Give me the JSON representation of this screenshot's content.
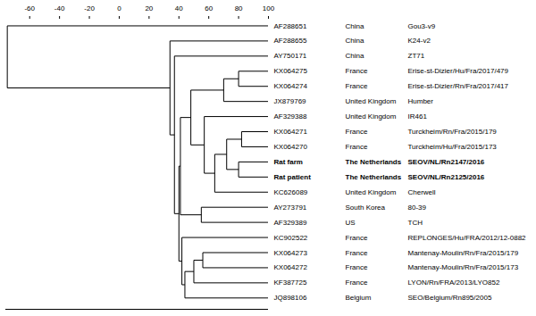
{
  "chart_data": {
    "type": "dendrogram",
    "xlim": [
      -76,
      100
    ],
    "xticks": [
      -60,
      -40,
      -20,
      0,
      20,
      40,
      60,
      80,
      100
    ],
    "tree": {
      "height": -75,
      "children": [
        {
          "height": 34,
          "children": [
            {
              "height": 37,
              "children": [
                {
                  "height": 40,
                  "children": [
                    {
                      "height": 42,
                      "children": [
                        {
                          "height": 44,
                          "children": [
                            {
                              "accession": "JQ898106",
                              "country": "Belgium",
                              "strain": "SEO/Belgium/Rn895/2005"
                            },
                            {
                              "height": 50,
                              "children": [
                                {
                                  "accession": "KF387725",
                                  "country": "France",
                                  "strain": "LYON/Rn/FRA/2013/LYO852"
                                },
                                {
                                  "height": 56,
                                  "children": [
                                    {
                                      "accession": "KX064272",
                                      "country": "France",
                                      "strain": "Mantenay-Moulin/Rn/Fra/2015/173"
                                    },
                                    {
                                      "accession": "KX064273",
                                      "country": "France",
                                      "strain": "Mantenay-Moulin/Rn/Fra/2015/179"
                                    }
                                  ]
                                }
                              ]
                            }
                          ]
                        },
                        {
                          "accession": "KC902522",
                          "country": "France",
                          "strain": "REPLONGES/Hu/FRA/2012/12-0882"
                        }
                      ]
                    },
                    {
                      "height": 41,
                      "children": [
                        {
                          "height": 55,
                          "children": [
                            {
                              "accession": "AF329389",
                              "country": "US",
                              "strain": "TCH"
                            },
                            {
                              "accession": "AY273791",
                              "country": "South Korea",
                              "strain": "80-39"
                            }
                          ]
                        },
                        {
                          "height": 48,
                          "children": [
                            {
                              "height": 57,
                              "children": [
                                {
                                  "height": 64,
                                  "children": [
                                    {
                                      "accession": "KC626089",
                                      "country": "United Kingdom",
                                      "strain": "Cherwell"
                                    },
                                    {
                                      "height": 72,
                                      "children": [
                                        {
                                          "height": 80,
                                          "children": [
                                            {
                                              "accession": "Rat patient",
                                              "country": "The Netherlands",
                                              "strain": "SEOV/NL/Rn2125/2016"
                                            },
                                            {
                                              "accession": "Rat farm",
                                              "country": "The Netherlands",
                                              "strain": "SEOV/NL/Rn2147/2016"
                                            }
                                          ]
                                        },
                                        {
                                          "height": 82,
                                          "children": [
                                            {
                                              "accession": "KX064270",
                                              "country": "France",
                                              "strain": "Turckheim/Hu/Fra/2015/173"
                                            },
                                            {
                                              "accession": "KX064271",
                                              "country": "France",
                                              "strain": "Turckheim/Rn/Fra/2015/179"
                                            }
                                          ]
                                        }
                                      ]
                                    }
                                  ]
                                },
                                {
                                  "accession": "AF329388",
                                  "country": "United Kingdom",
                                  "strain": "IR461"
                                }
                              ]
                            },
                            {
                              "height": 70,
                              "children": [
                                {
                                  "accession": "JX879769",
                                  "country": "United Kingdom",
                                  "strain": "Humber"
                                },
                                {
                                  "height": 80,
                                  "children": [
                                    {
                                      "accession": "KX064274",
                                      "country": "France",
                                      "strain": "Erise-st-Dizier/Rn/Fra/2017/417"
                                    },
                                    {
                                      "accession": "KX064275",
                                      "country": "France",
                                      "strain": "Erise-st-Dizier/Hu/Fra/2017/479"
                                    }
                                  ]
                                }
                              ]
                            }
                          ]
                        }
                      ]
                    }
                  ]
                },
                {
                  "accession": "AY750171",
                  "country": "China",
                  "strain": "ZT71"
                }
              ]
            },
            {
              "accession": "AF288655",
              "country": "China",
              "strain": "K24-v2"
            }
          ]
        },
        {
          "accession": "AF288651",
          "country": "China",
          "strain": "Gou3-v9"
        }
      ]
    }
  }
}
